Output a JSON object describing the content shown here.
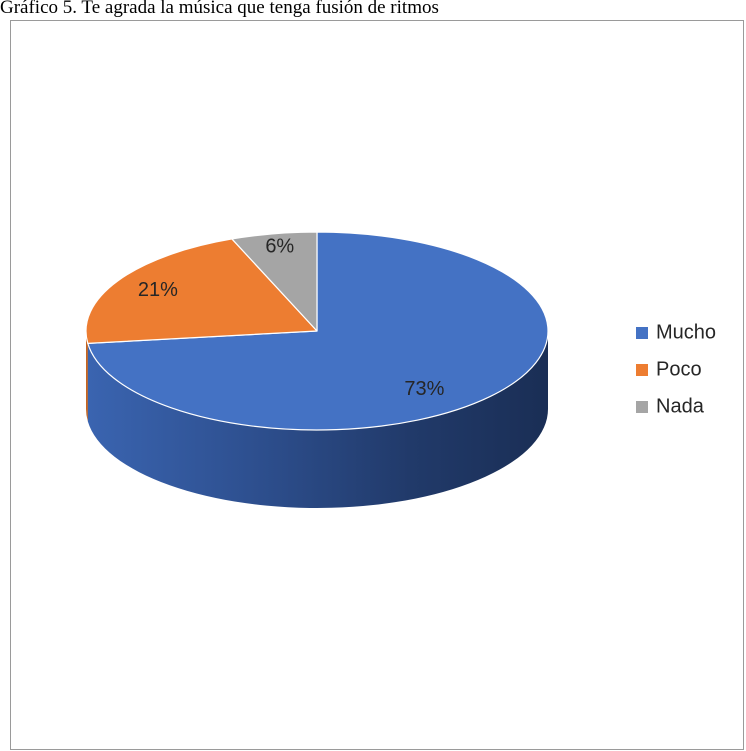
{
  "caption": "Gráfico 5. Te agrada la música que tenga fusión de ritmos",
  "chart_data": {
    "type": "pie",
    "title": "",
    "categories": [
      "Mucho",
      "Poco",
      "Nada"
    ],
    "values": [
      73,
      21,
      6
    ],
    "labels": [
      "73%",
      "21%",
      "6%"
    ],
    "colors": [
      "#4472C4",
      "#ED7D31",
      "#A5A5A5"
    ],
    "legend_position": "right",
    "style": "3d"
  }
}
